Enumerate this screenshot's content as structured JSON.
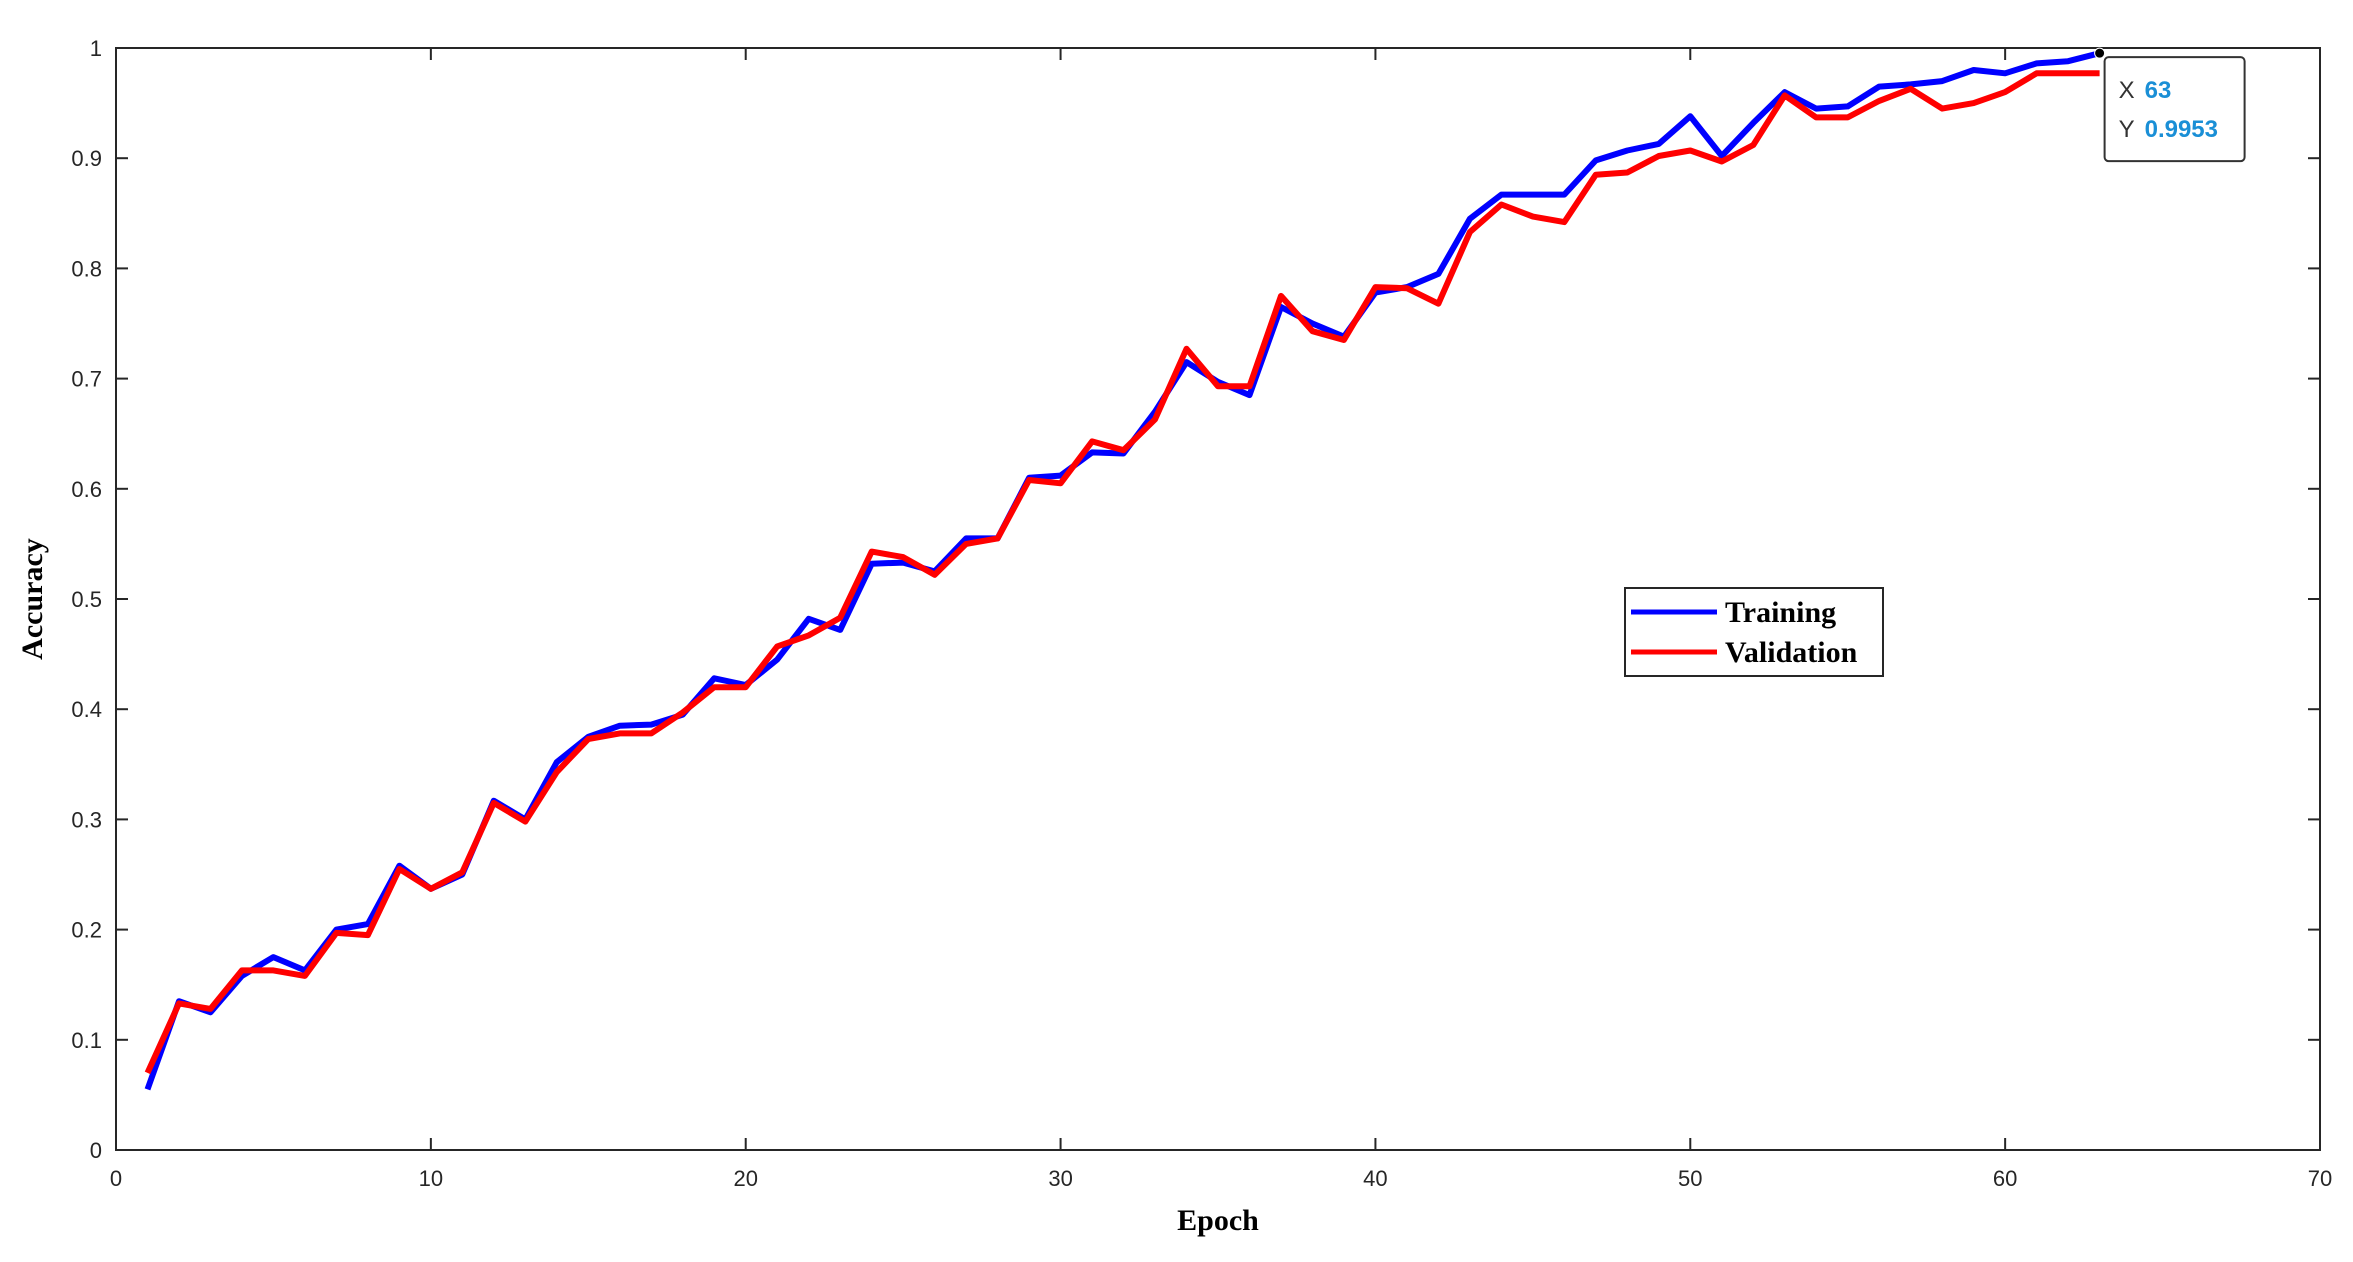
{
  "chart_data": {
    "type": "line",
    "xlabel": "Epoch",
    "ylabel": "Accuracy",
    "xlim": [
      0,
      70
    ],
    "ylim": [
      0,
      1
    ],
    "xticks": [
      0,
      10,
      20,
      30,
      40,
      50,
      60,
      70
    ],
    "yticks": [
      0,
      0.1,
      0.2,
      0.3,
      0.4,
      0.5,
      0.6,
      0.7,
      0.8,
      0.9,
      1
    ],
    "grid": false,
    "legend_placement": "center-right",
    "x": [
      1,
      2,
      3,
      4,
      5,
      6,
      7,
      8,
      9,
      10,
      11,
      12,
      13,
      14,
      15,
      16,
      17,
      18,
      19,
      20,
      21,
      22,
      23,
      24,
      25,
      26,
      27,
      28,
      29,
      30,
      31,
      32,
      33,
      34,
      35,
      36,
      37,
      38,
      39,
      40,
      41,
      42,
      43,
      44,
      45,
      46,
      47,
      48,
      49,
      50,
      51,
      52,
      53,
      54,
      55,
      56,
      57,
      58,
      59,
      60,
      61,
      62,
      63
    ],
    "series": [
      {
        "name": "Training",
        "color": "#0000ff",
        "values": [
          0.055,
          0.135,
          0.125,
          0.158,
          0.175,
          0.163,
          0.2,
          0.205,
          0.258,
          0.237,
          0.25,
          0.317,
          0.3,
          0.352,
          0.375,
          0.385,
          0.386,
          0.395,
          0.428,
          0.422,
          0.445,
          0.482,
          0.472,
          0.532,
          0.533,
          0.525,
          0.555,
          0.555,
          0.61,
          0.612,
          0.633,
          0.632,
          0.67,
          0.715,
          0.697,
          0.685,
          0.765,
          0.75,
          0.738,
          0.778,
          0.783,
          0.795,
          0.845,
          0.867,
          0.867,
          0.867,
          0.898,
          0.907,
          0.913,
          0.938,
          0.902,
          0.932,
          0.96,
          0.945,
          0.947,
          0.965,
          0.967,
          0.97,
          0.98,
          0.977,
          0.986,
          0.988,
          0.9953
        ]
      },
      {
        "name": "Validation",
        "color": "#ff0000",
        "values": [
          0.07,
          0.133,
          0.128,
          0.163,
          0.163,
          0.158,
          0.197,
          0.195,
          0.255,
          0.237,
          0.252,
          0.315,
          0.298,
          0.343,
          0.373,
          0.378,
          0.378,
          0.397,
          0.42,
          0.42,
          0.457,
          0.467,
          0.483,
          0.543,
          0.538,
          0.522,
          0.55,
          0.555,
          0.608,
          0.605,
          0.643,
          0.635,
          0.663,
          0.727,
          0.693,
          0.693,
          0.775,
          0.743,
          0.735,
          0.783,
          0.782,
          0.768,
          0.833,
          0.858,
          0.847,
          0.842,
          0.885,
          0.887,
          0.902,
          0.907,
          0.897,
          0.912,
          0.957,
          0.937,
          0.937,
          0.952,
          0.963,
          0.945,
          0.95,
          0.96,
          0.977,
          0.977,
          0.977
        ]
      }
    ],
    "datatip": {
      "x_label": "X",
      "x_value": "63",
      "y_label": "Y",
      "y_value": "0.9953",
      "series": "Training",
      "x": 63,
      "y": 0.9953
    }
  }
}
